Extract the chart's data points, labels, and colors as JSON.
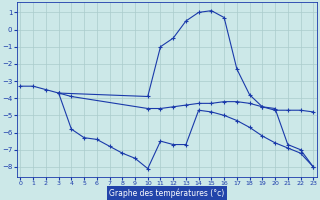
{
  "lines": [
    {
      "x": [
        0,
        1,
        2,
        3,
        10,
        11,
        12,
        13,
        14,
        15,
        16,
        17,
        18,
        19,
        20,
        21,
        22,
        23
      ],
      "y": [
        -3.3,
        -3.3,
        -3.5,
        -3.7,
        -3.9,
        -1.0,
        -0.5,
        0.5,
        1.0,
        1.1,
        0.7,
        -2.3,
        -3.8,
        -4.5,
        -4.7,
        -4.7,
        -4.7,
        -4.8
      ]
    },
    {
      "x": [
        3,
        4,
        5,
        6,
        7,
        8,
        9,
        10,
        11,
        12,
        13,
        14,
        15,
        16,
        17,
        18,
        19,
        20,
        21,
        22,
        23
      ],
      "y": [
        -3.7,
        -5.8,
        -6.3,
        -6.4,
        -6.8,
        -7.2,
        -7.5,
        -8.1,
        -6.5,
        -6.7,
        -6.7,
        -4.7,
        -4.8,
        -5.0,
        -5.3,
        -5.7,
        -6.2,
        -6.6,
        -6.9,
        -7.2,
        -8.0
      ]
    },
    {
      "x": [
        3,
        4,
        10,
        11,
        12,
        13,
        14,
        15,
        16,
        17,
        18,
        19,
        20,
        21,
        22,
        23
      ],
      "y": [
        -3.7,
        -3.9,
        -4.6,
        -4.6,
        -4.5,
        -4.4,
        -4.3,
        -4.3,
        -4.2,
        -4.2,
        -4.3,
        -4.5,
        -4.6,
        -6.7,
        -7.0,
        -8.0
      ]
    }
  ],
  "xlim": [
    -0.3,
    23.3
  ],
  "ylim": [
    -8.6,
    1.6
  ],
  "yticks": [
    1,
    0,
    -1,
    -2,
    -3,
    -4,
    -5,
    -6,
    -7,
    -8
  ],
  "xticks": [
    0,
    1,
    2,
    3,
    4,
    5,
    6,
    7,
    8,
    9,
    10,
    11,
    12,
    13,
    14,
    15,
    16,
    17,
    18,
    19,
    20,
    21,
    22,
    23
  ],
  "xlabel": "Graphe des températures (°c)",
  "bg_color": "#cce8e8",
  "grid_color": "#aacccc",
  "line_color": "#1a3aaa",
  "axis_label_color": "#1a3aaa",
  "tick_color": "#1a3aaa",
  "xlabel_bg": "#2244aa",
  "xlabel_text_color": "#ffffff"
}
